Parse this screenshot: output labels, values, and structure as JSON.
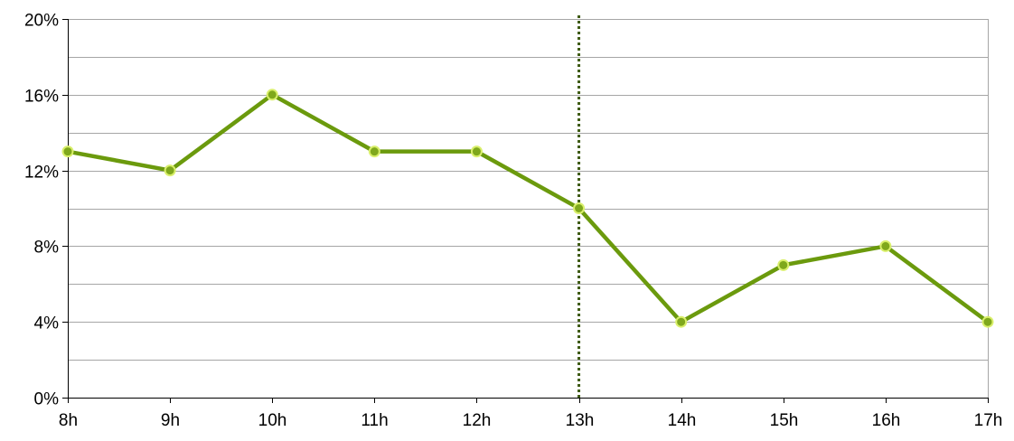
{
  "chart_data": {
    "type": "line",
    "categories": [
      "8h",
      "9h",
      "10h",
      "11h",
      "12h",
      "13h",
      "14h",
      "15h",
      "16h",
      "17h"
    ],
    "series": [
      {
        "values": [
          13,
          12,
          16,
          13,
          13,
          10,
          4,
          7,
          8,
          4
        ]
      }
    ],
    "y_tick_labels": [
      "0%",
      "4%",
      "8%",
      "12%",
      "16%",
      "20%"
    ],
    "y_ticks": [
      0,
      4,
      8,
      12,
      16,
      20
    ],
    "ylim": [
      0,
      20
    ],
    "y_unit": "%",
    "grid": true,
    "grid_minor_step": 2,
    "legend": "none",
    "marker_category": "13h",
    "colors": {
      "line": "#6b9a0d",
      "point_fill": "#7fa81c",
      "point_stroke": "#d9ef6b",
      "marker": "#3d5a12",
      "grid": "#a6a6a6",
      "axis": "#000000"
    }
  }
}
